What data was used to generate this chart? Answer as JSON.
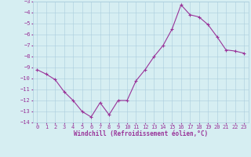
{
  "x": [
    0,
    1,
    2,
    3,
    4,
    5,
    6,
    7,
    8,
    9,
    10,
    11,
    12,
    13,
    14,
    15,
    16,
    17,
    18,
    19,
    20,
    21,
    22,
    23
  ],
  "y": [
    -9.2,
    -9.6,
    -10.1,
    -11.2,
    -12.0,
    -13.0,
    -13.5,
    -12.2,
    -13.3,
    -12.0,
    -12.0,
    -10.2,
    -9.2,
    -8.0,
    -7.0,
    -5.5,
    -3.3,
    -4.2,
    -4.4,
    -5.1,
    -6.2,
    -7.4,
    -7.5,
    -7.7
  ],
  "line_color": "#993399",
  "marker": "+",
  "bg_color": "#d6eef2",
  "grid_color": "#aaccdd",
  "xlabel": "Windchill (Refroidissement éolien,°C)",
  "xlabel_color": "#993399",
  "tick_color": "#993399",
  "ylim": [
    -14,
    -3
  ],
  "xlim": [
    -0.5,
    23.5
  ],
  "yticks": [
    -14,
    -13,
    -12,
    -11,
    -10,
    -9,
    -8,
    -7,
    -6,
    -5,
    -4,
    -3
  ],
  "xticks": [
    0,
    1,
    2,
    3,
    4,
    5,
    6,
    7,
    8,
    9,
    10,
    11,
    12,
    13,
    14,
    15,
    16,
    17,
    18,
    19,
    20,
    21,
    22,
    23
  ],
  "tick_fontsize": 5.0,
  "xlabel_fontsize": 5.5,
  "linewidth": 0.8,
  "markersize": 3.0
}
